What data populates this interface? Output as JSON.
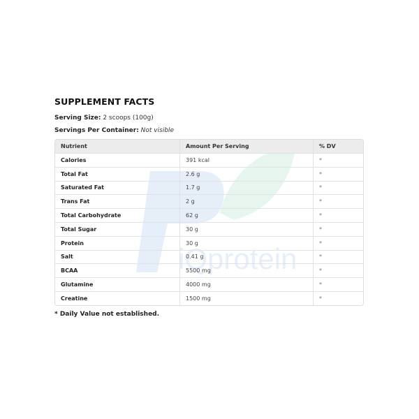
{
  "title": "SUPPLEMENT FACTS",
  "serving_size": {
    "label": "Serving Size:",
    "value": "2 scoops (100g)"
  },
  "servings_per_container": {
    "label": "Servings Per Container:",
    "value": "Not visible"
  },
  "table": {
    "headers": [
      "Nutrient",
      "Amount Per Serving",
      "% DV"
    ],
    "rows": [
      {
        "nutrient": "Calories",
        "amount": "391 kcal",
        "dv": "*"
      },
      {
        "nutrient": "Total Fat",
        "amount": "2.6 g",
        "dv": "*"
      },
      {
        "nutrient": "Saturated Fat",
        "amount": "1.7 g",
        "dv": "*"
      },
      {
        "nutrient": "Trans Fat",
        "amount": "2 g",
        "dv": "*"
      },
      {
        "nutrient": "Total Carbohydrate",
        "amount": "62 g",
        "dv": "*"
      },
      {
        "nutrient": "Total Sugar",
        "amount": "30 g",
        "dv": "*"
      },
      {
        "nutrient": "Protein",
        "amount": "30 g",
        "dv": "*"
      },
      {
        "nutrient": "Salt",
        "amount": "0.41 g",
        "dv": "*"
      },
      {
        "nutrient": "BCAA",
        "amount": "5500 mg",
        "dv": "*"
      },
      {
        "nutrient": "Glutamine",
        "amount": "4000 mg",
        "dv": "*"
      },
      {
        "nutrient": "Creatine",
        "amount": "1500 mg",
        "dv": "*"
      }
    ]
  },
  "footnote": "* Daily Value not established.",
  "watermark": {
    "text": "iQprotein",
    "colors": {
      "blue": "#3a7bd5",
      "green": "#3cb371"
    }
  }
}
